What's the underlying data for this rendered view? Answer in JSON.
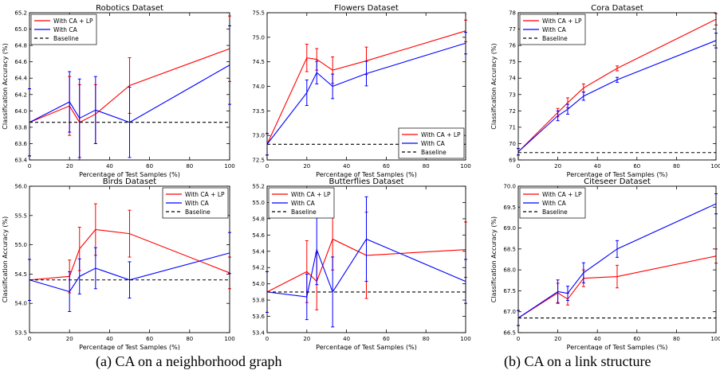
{
  "captions": {
    "a": "(a) CA on a neighborhood graph",
    "b": "(b) CA on a link structure"
  },
  "colors": {
    "lp": "#ff0000",
    "ca": "#0000ff",
    "baseline": "#000000"
  },
  "chart_data": [
    {
      "type": "line",
      "title": "Robotics Dataset",
      "xlabel": "Percentage of Test Samples (%)",
      "ylabel": "Classification Accuracy (%)",
      "xlim": [
        0,
        100
      ],
      "ylim": [
        63.4,
        65.2
      ],
      "xticks": [
        0,
        20,
        40,
        60,
        80,
        100
      ],
      "yticks": [
        63.4,
        63.6,
        63.8,
        64.0,
        64.2,
        64.4,
        64.6,
        64.8,
        65.0,
        65.2
      ],
      "ydec": 1,
      "legend": "top-left",
      "series": [
        {
          "name": "With CA + LP",
          "color": "#ff0000",
          "x": [
            0,
            20,
            25,
            33,
            50,
            100
          ],
          "y": [
            63.86,
            64.06,
            63.86,
            63.96,
            64.31,
            64.76
          ],
          "err": [
            0.41,
            0.36,
            0.46,
            0.36,
            0.34,
            0.4
          ]
        },
        {
          "name": "With CA",
          "color": "#0000ff",
          "x": [
            0,
            20,
            25,
            33,
            50,
            100
          ],
          "y": [
            63.86,
            64.11,
            63.91,
            64.01,
            63.86,
            64.56
          ],
          "err": [
            0.41,
            0.37,
            0.48,
            0.41,
            0.43,
            0.48
          ]
        },
        {
          "name": "Baseline",
          "color": "#000000",
          "dashed": true,
          "x": [
            0,
            100
          ],
          "y": [
            63.86,
            63.86
          ]
        }
      ]
    },
    {
      "type": "line",
      "title": "Flowers Dataset",
      "xlabel": "Percentage of Test Samples (%)",
      "ylabel": "",
      "xlim": [
        0,
        100
      ],
      "ylim": [
        72.5,
        75.5
      ],
      "xticks": [
        0,
        20,
        40,
        60,
        80,
        100
      ],
      "yticks": [
        72.5,
        73.0,
        73.5,
        74.0,
        74.5,
        75.0,
        75.5
      ],
      "ydec": 1,
      "legend": "bottom-right",
      "series": [
        {
          "name": "With CA + LP",
          "color": "#ff0000",
          "x": [
            0,
            20,
            25,
            33,
            50,
            100
          ],
          "y": [
            72.82,
            74.58,
            74.55,
            74.33,
            74.52,
            75.13
          ],
          "err": [
            0.22,
            0.28,
            0.22,
            0.27,
            0.28,
            0.22
          ]
        },
        {
          "name": "With CA",
          "color": "#0000ff",
          "x": [
            0,
            20,
            25,
            33,
            50,
            100
          ],
          "y": [
            72.82,
            73.87,
            74.28,
            74.0,
            74.26,
            74.88
          ],
          "err": [
            0.22,
            0.26,
            0.23,
            0.25,
            0.25,
            0.22
          ]
        },
        {
          "name": "Baseline",
          "color": "#000000",
          "dashed": true,
          "x": [
            0,
            100
          ],
          "y": [
            72.82,
            72.82
          ]
        }
      ]
    },
    {
      "type": "line",
      "title": "Cora Dataset",
      "xlabel": "Percentage of Test Samples (%)",
      "ylabel": "Classification Accuracy (%)",
      "xlim": [
        0,
        100
      ],
      "ylim": [
        69,
        78
      ],
      "xticks": [
        0,
        20,
        40,
        60,
        80,
        100
      ],
      "yticks": [
        69,
        70,
        71,
        72,
        73,
        74,
        75,
        76,
        77,
        78
      ],
      "ydec": 0,
      "legend": "top-left",
      "series": [
        {
          "name": "With CA + LP",
          "color": "#ff0000",
          "x": [
            0,
            20,
            25,
            33,
            50,
            100
          ],
          "y": [
            69.5,
            71.9,
            72.5,
            73.4,
            74.6,
            77.6
          ],
          "err": [
            0.2,
            0.25,
            0.3,
            0.25,
            0.15,
            0.35
          ]
        },
        {
          "name": "With CA",
          "color": "#0000ff",
          "x": [
            0,
            20,
            25,
            33,
            50,
            100
          ],
          "y": [
            69.5,
            71.7,
            72.1,
            72.9,
            73.9,
            76.3
          ],
          "err": [
            0.2,
            0.3,
            0.3,
            0.25,
            0.15,
            0.45
          ]
        },
        {
          "name": "Baseline",
          "color": "#000000",
          "dashed": true,
          "x": [
            0,
            100
          ],
          "y": [
            69.45,
            69.45
          ]
        }
      ]
    },
    {
      "type": "line",
      "title": "Birds Dataset",
      "xlabel": "Percentage of Test Samples (%)",
      "ylabel": "Classification Accuracy (%)",
      "xlim": [
        0,
        100
      ],
      "ylim": [
        53.5,
        56.0
      ],
      "xticks": [
        0,
        20,
        40,
        60,
        80,
        100
      ],
      "yticks": [
        53.5,
        54.0,
        54.5,
        55.0,
        55.5,
        56.0
      ],
      "ydec": 1,
      "legend": "top-right",
      "series": [
        {
          "name": "With CA + LP",
          "color": "#ff0000",
          "x": [
            0,
            20,
            25,
            33,
            50,
            100
          ],
          "y": [
            54.4,
            54.46,
            54.93,
            55.26,
            55.19,
            54.52
          ],
          "err": [
            0.35,
            0.28,
            0.37,
            0.44,
            0.4,
            0.27
          ]
        },
        {
          "name": "With CA",
          "color": "#0000ff",
          "x": [
            0,
            20,
            25,
            33,
            50,
            100
          ],
          "y": [
            54.4,
            54.2,
            54.46,
            54.6,
            54.4,
            54.86
          ],
          "err": [
            0.35,
            0.34,
            0.3,
            0.35,
            0.31,
            0.35
          ]
        },
        {
          "name": "Baseline",
          "color": "#000000",
          "dashed": true,
          "x": [
            0,
            100
          ],
          "y": [
            54.4,
            54.4
          ]
        }
      ]
    },
    {
      "type": "line",
      "title": "Butterflies Dataset",
      "xlabel": "Percentage of Test Samples (%)",
      "ylabel": "",
      "xlim": [
        0,
        100
      ],
      "ylim": [
        53.4,
        55.2
      ],
      "xticks": [
        0,
        20,
        40,
        60,
        80,
        100
      ],
      "yticks": [
        53.4,
        53.6,
        53.8,
        54.0,
        54.2,
        54.4,
        54.6,
        54.8,
        55.0,
        55.2
      ],
      "ydec": 1,
      "legend": "top-left",
      "series": [
        {
          "name": "With CA + LP",
          "color": "#ff0000",
          "x": [
            0,
            20,
            25,
            33,
            50,
            100
          ],
          "y": [
            53.9,
            54.15,
            54.03,
            54.55,
            54.35,
            54.42
          ],
          "err": [
            0.25,
            0.38,
            0.35,
            0.38,
            0.53,
            0.34
          ]
        },
        {
          "name": "With CA",
          "color": "#0000ff",
          "x": [
            0,
            20,
            25,
            33,
            50,
            100
          ],
          "y": [
            53.9,
            53.84,
            54.42,
            53.9,
            54.55,
            54.03
          ],
          "err": [
            0.25,
            0.28,
            0.43,
            0.43,
            0.52,
            0.27
          ]
        },
        {
          "name": "Baseline",
          "color": "#000000",
          "dashed": true,
          "x": [
            0,
            100
          ],
          "y": [
            53.9,
            53.9
          ]
        }
      ]
    },
    {
      "type": "line",
      "title": "Citeseer Dataset",
      "xlabel": "Percentage of Test Samples (%)",
      "ylabel": "Classification Accuracy (%)",
      "xlim": [
        0,
        100
      ],
      "ylim": [
        66.5,
        70.0
      ],
      "xticks": [
        0,
        20,
        40,
        60,
        80,
        100
      ],
      "yticks": [
        66.5,
        67.0,
        67.5,
        68.0,
        68.5,
        69.0,
        69.5,
        70.0
      ],
      "ydec": 1,
      "legend": "top-left",
      "series": [
        {
          "name": "With CA + LP",
          "color": "#ff0000",
          "x": [
            0,
            20,
            25,
            33,
            50,
            100
          ],
          "y": [
            66.85,
            67.45,
            67.3,
            67.8,
            67.84,
            68.33
          ],
          "err": [
            0.18,
            0.23,
            0.14,
            0.2,
            0.27,
            0.17
          ]
        },
        {
          "name": "With CA",
          "color": "#0000ff",
          "x": [
            0,
            20,
            25,
            33,
            50,
            100
          ],
          "y": [
            66.85,
            67.48,
            67.44,
            67.93,
            68.5,
            69.58
          ],
          "err": [
            0.18,
            0.28,
            0.17,
            0.24,
            0.2,
            0.24
          ]
        },
        {
          "name": "Baseline",
          "color": "#000000",
          "dashed": true,
          "x": [
            0,
            100
          ],
          "y": [
            66.85,
            66.85
          ]
        }
      ]
    }
  ]
}
